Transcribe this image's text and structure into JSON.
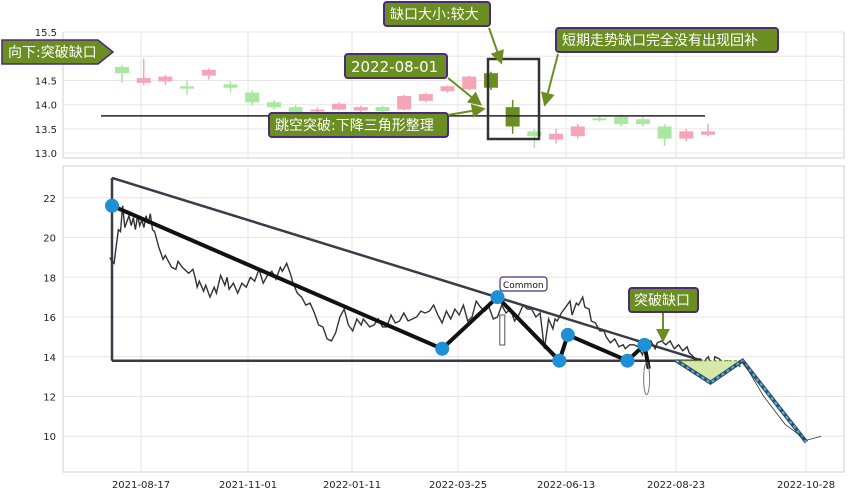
{
  "colors": {
    "up_candle": "#f4a6b8",
    "down_candle": "#a9e8a0",
    "gap_candle": "#6b8e23",
    "label_fill": "#6b8e23",
    "label_border": "#4a2a7a",
    "price_line": "#333333",
    "pattern_line": "#111111",
    "trend_line": "#3a3a48",
    "pivot_dot": "#1f8fd6",
    "dash_fill": "#5ab4d6",
    "grid": "#e6e6e6"
  },
  "annotations": {
    "gap_direction": "向下:突破缺口",
    "gap_size": "缺口大小:较大",
    "gap_date": "2022-08-01",
    "gap_pattern": "跳空突破:下降三角形整理",
    "gap_status": "短期走势缺口完全没有出现回补",
    "breakout": "突破缺口",
    "common": "Common"
  },
  "chart_data": [
    {
      "type": "candlestick",
      "y_ticks": [
        "15.5",
        "15.0",
        "14.5",
        "14.0",
        "13.5",
        "13.0"
      ],
      "ylim": [
        12.9,
        15.5
      ],
      "reference_level": 13.77,
      "candles": [
        {
          "o": 14.65,
          "c": 14.78,
          "h": 14.82,
          "l": 14.45,
          "d": 0
        },
        {
          "o": 14.55,
          "c": 14.45,
          "h": 14.95,
          "l": 14.4,
          "d": 1
        },
        {
          "o": 14.48,
          "c": 14.58,
          "h": 14.62,
          "l": 14.4,
          "d": 1
        },
        {
          "o": 14.38,
          "c": 14.33,
          "h": 14.5,
          "l": 14.2,
          "d": 0
        },
        {
          "o": 14.6,
          "c": 14.72,
          "h": 14.75,
          "l": 14.52,
          "d": 1
        },
        {
          "o": 14.42,
          "c": 14.35,
          "h": 14.48,
          "l": 14.25,
          "d": 0
        },
        {
          "o": 14.25,
          "c": 14.05,
          "h": 14.3,
          "l": 13.98,
          "d": 0
        },
        {
          "o": 14.05,
          "c": 13.95,
          "h": 14.1,
          "l": 13.9,
          "d": 0
        },
        {
          "o": 13.95,
          "c": 13.85,
          "h": 14.0,
          "l": 13.8,
          "d": 0
        },
        {
          "o": 13.9,
          "c": 13.9,
          "h": 13.95,
          "l": 13.85,
          "d": 1
        },
        {
          "o": 13.9,
          "c": 14.02,
          "h": 14.05,
          "l": 13.88,
          "d": 1
        },
        {
          "o": 13.88,
          "c": 13.95,
          "h": 13.98,
          "l": 13.85,
          "d": 1
        },
        {
          "o": 13.95,
          "c": 13.87,
          "h": 13.98,
          "l": 13.85,
          "d": 0
        },
        {
          "o": 13.9,
          "c": 14.18,
          "h": 14.2,
          "l": 13.88,
          "d": 1
        },
        {
          "o": 14.08,
          "c": 14.22,
          "h": 14.25,
          "l": 14.05,
          "d": 1
        },
        {
          "o": 14.28,
          "c": 14.38,
          "h": 14.4,
          "l": 14.25,
          "d": 1
        },
        {
          "o": 14.58,
          "c": 14.32,
          "h": 14.6,
          "l": 14.3,
          "d": 1
        },
        {
          "o": 14.65,
          "c": 14.35,
          "h": 14.68,
          "l": 14.3,
          "d": 2
        },
        {
          "o": 13.95,
          "c": 13.55,
          "h": 14.1,
          "l": 13.4,
          "d": 2
        },
        {
          "o": 13.45,
          "c": 13.35,
          "h": 13.5,
          "l": 13.1,
          "d": 0
        },
        {
          "o": 13.28,
          "c": 13.4,
          "h": 13.5,
          "l": 13.2,
          "d": 1
        },
        {
          "o": 13.35,
          "c": 13.55,
          "h": 13.6,
          "l": 13.3,
          "d": 1
        },
        {
          "o": 13.72,
          "c": 13.7,
          "h": 13.78,
          "l": 13.65,
          "d": 0
        },
        {
          "o": 13.75,
          "c": 13.6,
          "h": 13.8,
          "l": 13.55,
          "d": 0
        },
        {
          "o": 13.6,
          "c": 13.7,
          "h": 13.75,
          "l": 13.55,
          "d": 0
        },
        {
          "o": 13.55,
          "c": 13.3,
          "h": 13.6,
          "l": 13.15,
          "d": 0
        },
        {
          "o": 13.3,
          "c": 13.45,
          "h": 13.5,
          "l": 13.25,
          "d": 1
        },
        {
          "o": 13.38,
          "c": 13.45,
          "h": 13.6,
          "l": 13.35,
          "d": 1
        }
      ]
    },
    {
      "type": "line",
      "x_ticks": [
        "2021-08-17",
        "2021-11-01",
        "2022-01-11",
        "2022-03-25",
        "2022-06-13",
        "2022-08-23",
        "2022-10-28"
      ],
      "y_ticks": [
        "22",
        "20",
        "18",
        "16",
        "14",
        "12",
        "10"
      ],
      "ylim": [
        8.2,
        23.6
      ],
      "price": [
        [
          -1,
          19.0
        ],
        [
          0,
          18.8
        ],
        [
          1,
          18.7
        ],
        [
          2,
          19.6
        ],
        [
          3,
          20.4
        ],
        [
          4,
          20.3
        ],
        [
          5,
          21.6
        ],
        [
          6,
          20.5
        ],
        [
          8,
          21.1
        ],
        [
          9,
          20.6
        ],
        [
          10,
          21.0
        ],
        [
          11,
          20.4
        ],
        [
          12,
          21.1
        ],
        [
          13,
          20.6
        ],
        [
          14,
          20.9
        ],
        [
          15,
          20.5
        ],
        [
          16,
          21.1
        ],
        [
          17,
          20.7
        ],
        [
          18,
          21.2
        ],
        [
          19,
          20.4
        ],
        [
          20,
          20.3
        ],
        [
          22,
          19.5
        ],
        [
          24,
          18.9
        ],
        [
          25,
          19.1
        ],
        [
          27,
          18.7
        ],
        [
          28,
          18.5
        ],
        [
          30,
          18.4
        ],
        [
          31,
          18.8
        ],
        [
          33,
          18.5
        ],
        [
          35,
          18.3
        ],
        [
          36,
          18.2
        ],
        [
          38,
          18.4
        ],
        [
          39,
          18.0
        ],
        [
          40,
          17.5
        ],
        [
          41,
          17.8
        ],
        [
          43,
          17.3
        ],
        [
          44,
          17.6
        ],
        [
          46,
          17.0
        ],
        [
          48,
          17.5
        ],
        [
          49,
          17.2
        ],
        [
          51,
          18.1
        ],
        [
          53,
          17.6
        ],
        [
          54,
          18.0
        ],
        [
          55,
          17.4
        ],
        [
          57,
          17.7
        ],
        [
          59,
          17.2
        ],
        [
          61,
          17.7
        ],
        [
          63,
          17.5
        ],
        [
          65,
          18.0
        ],
        [
          67,
          17.8
        ],
        [
          69,
          18.4
        ],
        [
          71,
          17.7
        ],
        [
          73,
          18.1
        ],
        [
          75,
          18.3
        ],
        [
          77,
          17.9
        ],
        [
          79,
          18.5
        ],
        [
          80,
          18.3
        ],
        [
          82,
          18.7
        ],
        [
          84,
          18.1
        ],
        [
          85,
          17.7
        ],
        [
          87,
          17.2
        ],
        [
          89,
          17.0
        ],
        [
          91,
          16.6
        ],
        [
          93,
          16.7
        ],
        [
          95,
          16.2
        ],
        [
          97,
          15.6
        ],
        [
          99,
          15.5
        ],
        [
          101,
          14.9
        ],
        [
          103,
          14.8
        ],
        [
          105,
          15.2
        ],
        [
          107,
          16.0
        ],
        [
          109,
          16.4
        ],
        [
          111,
          15.6
        ],
        [
          113,
          15.3
        ],
        [
          115,
          15.9
        ],
        [
          117,
          15.6
        ],
        [
          118,
          15.9
        ],
        [
          121,
          15.5
        ],
        [
          123,
          15.6
        ],
        [
          125,
          15.9
        ],
        [
          127,
          15.5
        ],
        [
          129,
          15.5
        ],
        [
          131,
          16.1
        ],
        [
          133,
          15.7
        ],
        [
          135,
          15.8
        ],
        [
          137,
          16.2
        ],
        [
          139,
          15.8
        ],
        [
          141,
          15.9
        ],
        [
          143,
          16.0
        ],
        [
          145,
          16.3
        ],
        [
          147,
          16.2
        ],
        [
          149,
          16.3
        ],
        [
          151,
          16.6
        ],
        [
          153,
          16.1
        ],
        [
          155,
          15.7
        ],
        [
          157,
          16.3
        ],
        [
          159,
          15.9
        ],
        [
          161,
          16.4
        ],
        [
          163,
          16.1
        ],
        [
          165,
          16.6
        ],
        [
          167,
          15.8
        ],
        [
          169,
          16.0
        ],
        [
          171,
          16.8
        ],
        [
          173,
          16.5
        ],
        [
          175,
          16.3
        ],
        [
          177,
          16.5
        ],
        [
          179,
          15.9
        ],
        [
          181,
          16.0
        ],
        [
          183,
          16.6
        ],
        [
          185,
          16.2
        ],
        [
          187,
          16.4
        ],
        [
          189,
          15.8
        ],
        [
          191,
          16.1
        ],
        [
          193,
          16.6
        ],
        [
          195,
          16.4
        ],
        [
          197,
          16.4
        ],
        [
          199,
          16.0
        ],
        [
          201,
          16.2
        ],
        [
          203,
          14.4
        ],
        [
          205,
          15.9
        ],
        [
          207,
          15.4
        ],
        [
          208,
          15.9
        ],
        [
          209,
          15.8
        ],
        [
          211,
          16.2
        ],
        [
          213,
          16.5
        ],
        [
          215,
          16.8
        ],
        [
          216,
          16.1
        ],
        [
          218,
          16.7
        ],
        [
          219,
          16.6
        ],
        [
          221,
          17.0
        ],
        [
          222,
          16.5
        ],
        [
          224,
          16.4
        ],
        [
          225,
          15.8
        ],
        [
          227,
          15.7
        ],
        [
          229,
          15.3
        ],
        [
          231,
          15.3
        ],
        [
          232,
          15.0
        ],
        [
          234,
          14.7
        ],
        [
          236,
          14.9
        ],
        [
          238,
          14.5
        ],
        [
          240,
          14.6
        ],
        [
          241,
          14.4
        ],
        [
          243,
          14.6
        ],
        [
          245,
          14.6
        ],
        [
          247,
          14.5
        ],
        [
          249,
          14.1
        ],
        [
          251,
          14.8
        ],
        [
          253,
          14.8
        ],
        [
          255,
          14.4
        ],
        [
          256,
          14.7
        ],
        [
          258,
          14.8
        ],
        [
          260,
          14.6
        ],
        [
          262,
          14.8
        ],
        [
          264,
          14.4
        ],
        [
          266,
          14.6
        ],
        [
          268,
          14.3
        ],
        [
          270,
          14.5
        ],
        [
          271,
          14.2
        ],
        [
          273,
          14.0
        ],
        [
          274,
          13.8
        ],
        [
          276,
          13.9
        ],
        [
          278,
          13.7
        ],
        [
          279,
          13.9
        ],
        [
          280,
          14.0
        ],
        [
          282,
          13.2
        ],
        [
          283,
          14.0
        ],
        [
          285,
          13.9
        ],
        [
          287,
          13.7
        ],
        [
          289,
          13.8
        ],
        [
          291,
          13.6
        ],
        [
          293,
          13.7
        ],
        [
          295,
          13.5
        ]
      ],
      "pattern": [
        [
          0,
          21.6
        ],
        [
          155,
          14.4
        ],
        [
          181,
          17.0
        ],
        [
          210,
          13.8
        ],
        [
          214,
          15.1
        ],
        [
          242,
          13.8
        ],
        [
          250,
          14.6
        ],
        [
          252,
          13.4
        ]
      ],
      "pivots": [
        [
          0,
          21.6
        ],
        [
          155,
          14.4
        ],
        [
          181,
          17.0
        ],
        [
          210,
          13.8
        ],
        [
          214,
          15.1
        ],
        [
          242,
          13.8
        ],
        [
          250,
          14.6
        ]
      ],
      "triangle": {
        "top": [
          [
            0,
            23.0
          ],
          [
            277,
            13.8
          ]
        ],
        "bottom": [
          [
            0,
            13.8
          ],
          [
            277,
            13.8
          ]
        ],
        "left": [
          [
            0,
            23.0
          ],
          [
            0,
            13.8
          ]
        ]
      },
      "projection": [
        [
          265,
          13.8
        ],
        [
          281,
          12.7
        ],
        [
          296,
          13.8
        ],
        [
          326,
          9.7
        ]
      ],
      "projection_arc": [
        [
          296,
          13.8
        ],
        [
          306,
          12.0
        ],
        [
          316,
          10.6
        ],
        [
          326,
          9.8
        ],
        [
          333,
          10.0
        ]
      ],
      "common_marker": [
        183,
        16.0
      ],
      "breakout_marker": [
        251,
        13.6
      ]
    }
  ]
}
